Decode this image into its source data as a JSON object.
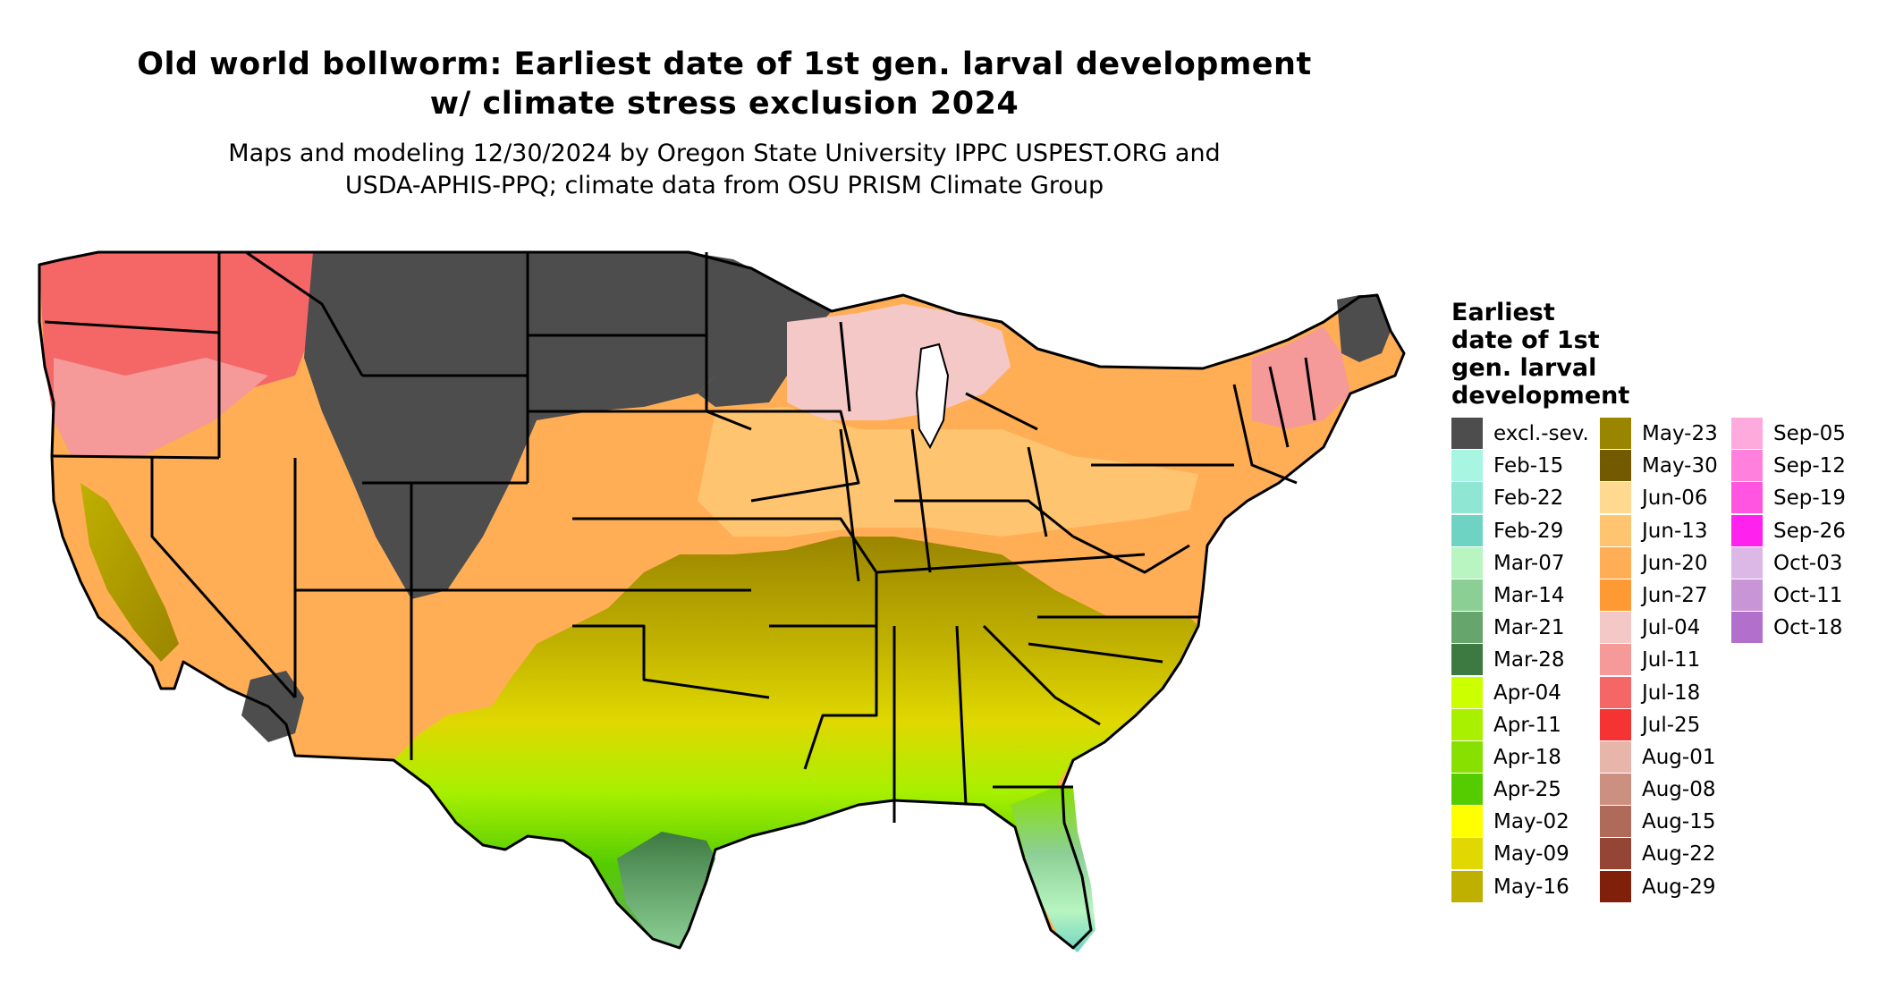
{
  "title": {
    "line1": "Old world bollworm: Earliest date of 1st gen. larval development",
    "line2": "w/ climate stress exclusion 2024"
  },
  "subtitle": {
    "line1": "Maps and modeling 12/30/2024 by Oregon State University IPPC USPEST.ORG and",
    "line2": "USDA-APHIS-PPQ; climate data from OSU PRISM Climate Group"
  },
  "legend": {
    "title_lines": [
      "Earliest",
      "date of 1st",
      "gen. larval",
      "development"
    ],
    "columns": [
      [
        {
          "label": "excl.-sev.",
          "color": "#4d4d4d"
        },
        {
          "label": "Feb-15",
          "color": "#a8f5e2"
        },
        {
          "label": "Feb-22",
          "color": "#8ee6d3"
        },
        {
          "label": "Feb-29",
          "color": "#6fd3c4"
        },
        {
          "label": "Mar-07",
          "color": "#b8f5c0"
        },
        {
          "label": "Mar-14",
          "color": "#8ccf95"
        },
        {
          "label": "Mar-21",
          "color": "#66a66d"
        },
        {
          "label": "Mar-28",
          "color": "#3d7a42"
        },
        {
          "label": "Apr-04",
          "color": "#ccff00"
        },
        {
          "label": "Apr-11",
          "color": "#a8f000"
        },
        {
          "label": "Apr-18",
          "color": "#88e000"
        },
        {
          "label": "Apr-25",
          "color": "#55cc00"
        },
        {
          "label": "May-02",
          "color": "#ffff00"
        },
        {
          "label": "May-09",
          "color": "#e0d800"
        },
        {
          "label": "May-16",
          "color": "#bfb000"
        }
      ],
      [
        {
          "label": "May-23",
          "color": "#9a8500"
        },
        {
          "label": "May-30",
          "color": "#735a00"
        },
        {
          "label": "Jun-06",
          "color": "#ffd990"
        },
        {
          "label": "Jun-13",
          "color": "#ffc470"
        },
        {
          "label": "Jun-20",
          "color": "#ffae55"
        },
        {
          "label": "Jun-27",
          "color": "#ff9933"
        },
        {
          "label": "Jul-04",
          "color": "#f5c8c8"
        },
        {
          "label": "Jul-11",
          "color": "#f59999"
        },
        {
          "label": "Jul-18",
          "color": "#f56666"
        },
        {
          "label": "Jul-25",
          "color": "#f53333"
        },
        {
          "label": "Aug-01",
          "color": "#e8b5aa"
        },
        {
          "label": "Aug-08",
          "color": "#cc9080"
        },
        {
          "label": "Aug-15",
          "color": "#b06a5a"
        },
        {
          "label": "Aug-22",
          "color": "#944535"
        },
        {
          "label": "Aug-29",
          "color": "#801f0a"
        }
      ],
      [
        {
          "label": "Sep-05",
          "color": "#ffaadd"
        },
        {
          "label": "Sep-12",
          "color": "#ff80dd"
        },
        {
          "label": "Sep-19",
          "color": "#ff55e0"
        },
        {
          "label": "Sep-26",
          "color": "#ff22ee"
        },
        {
          "label": "Oct-03",
          "color": "#dcb8e6"
        },
        {
          "label": "Oct-11",
          "color": "#c895d6"
        },
        {
          "label": "Oct-18",
          "color": "#b36fcc"
        }
      ]
    ]
  }
}
